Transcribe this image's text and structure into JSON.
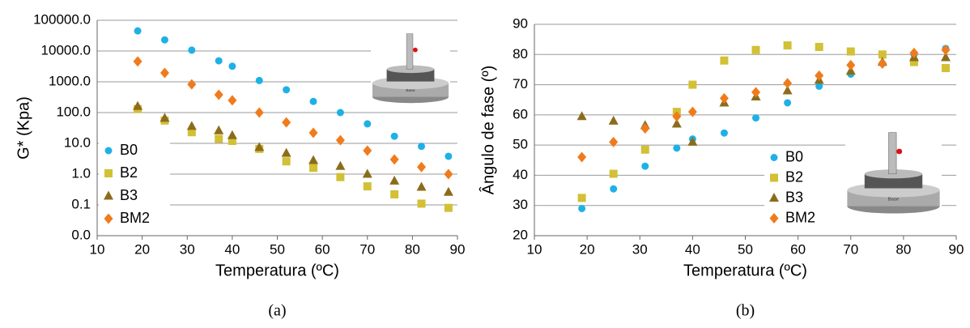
{
  "chart_data": [
    {
      "type": "scatter",
      "caption": "(a)",
      "x_label": "Temperatura (ºC)",
      "y_label": "G* (Kpa)",
      "log_y": true,
      "grid": true,
      "legend": "lower left",
      "image_label": "Base",
      "x": [
        19,
        25,
        31,
        37,
        40,
        46,
        52,
        58,
        64,
        70,
        76,
        82,
        88
      ],
      "xlim": [
        10,
        90
      ],
      "xticks": [
        10,
        20,
        30,
        40,
        50,
        60,
        70,
        80,
        90
      ],
      "ylim": [
        0.01,
        100000
      ],
      "yticks": [
        {
          "value": 0.01,
          "label": "0.0"
        },
        0.1,
        {
          "value": 1,
          "label": "1.0"
        },
        {
          "value": 10,
          "label": "10.0"
        },
        {
          "value": 100,
          "label": "100.0"
        },
        {
          "value": 1000,
          "label": "1000.0"
        },
        {
          "value": 10000,
          "label": "10000.0"
        },
        {
          "value": 100000,
          "label": "100000.0"
        }
      ],
      "series": [
        {
          "name": "B0",
          "color": "#1fb1e6",
          "marker": "circle",
          "values": [
            45000,
            23000,
            10700,
            4800,
            3200,
            1100,
            550,
            230,
            100,
            43,
            17,
            8,
            3.8
          ]
        },
        {
          "name": "B2",
          "color": "#d2c035",
          "marker": "square",
          "values": [
            130,
            55,
            23,
            14,
            12,
            6.6,
            2.6,
            1.6,
            0.8,
            0.4,
            0.22,
            0.11,
            0.08
          ]
        },
        {
          "name": "B3",
          "color": "#8c6c1c",
          "marker": "triangle",
          "values": [
            160,
            66,
            36,
            26,
            18,
            7.4,
            4.8,
            2.8,
            1.8,
            1.0,
            0.6,
            0.38,
            0.26
          ]
        },
        {
          "name": "BM2",
          "color": "#f07b1c",
          "marker": "diamond",
          "values": [
            4600,
            1950,
            830,
            380,
            250,
            100,
            48,
            22,
            12.6,
            5.8,
            3,
            1.7,
            1.0
          ]
        }
      ]
    },
    {
      "type": "scatter",
      "caption": "(b)",
      "x_label": "Temperatura (ºC)",
      "y_label": "Ângulo de fase (º)",
      "log_y": false,
      "grid": true,
      "legend": "center right",
      "image_label": "Base",
      "x": [
        19,
        25,
        31,
        37,
        40,
        46,
        52,
        58,
        64,
        70,
        76,
        82,
        88
      ],
      "xlim": [
        10,
        90
      ],
      "xticks": [
        10,
        20,
        30,
        40,
        50,
        60,
        70,
        80,
        90
      ],
      "ylim": [
        20,
        90
      ],
      "yticks": [
        20,
        30,
        40,
        50,
        60,
        70,
        80,
        90
      ],
      "series": [
        {
          "name": "B0",
          "color": "#1fb1e6",
          "marker": "circle",
          "values": [
            29,
            35.5,
            43,
            49,
            52,
            54,
            59,
            64,
            69.5,
            73.5,
            77,
            80,
            82
          ]
        },
        {
          "name": "B2",
          "color": "#d2c035",
          "marker": "square",
          "values": [
            32.5,
            40.5,
            48.5,
            61,
            70,
            78,
            81.5,
            83,
            82.5,
            81,
            80,
            77.5,
            75.5
          ]
        },
        {
          "name": "B3",
          "color": "#8c6c1c",
          "marker": "triangle",
          "values": [
            59.5,
            58,
            56.5,
            57,
            51,
            64,
            66,
            68,
            71.5,
            74.5,
            77.5,
            79,
            79
          ]
        },
        {
          "name": "BM2",
          "color": "#f07b1c",
          "marker": "diamond",
          "values": [
            46,
            51,
            55.5,
            59.5,
            61,
            65.5,
            67.5,
            70.5,
            73,
            76.5,
            77,
            80.5,
            81.5
          ]
        }
      ]
    }
  ]
}
